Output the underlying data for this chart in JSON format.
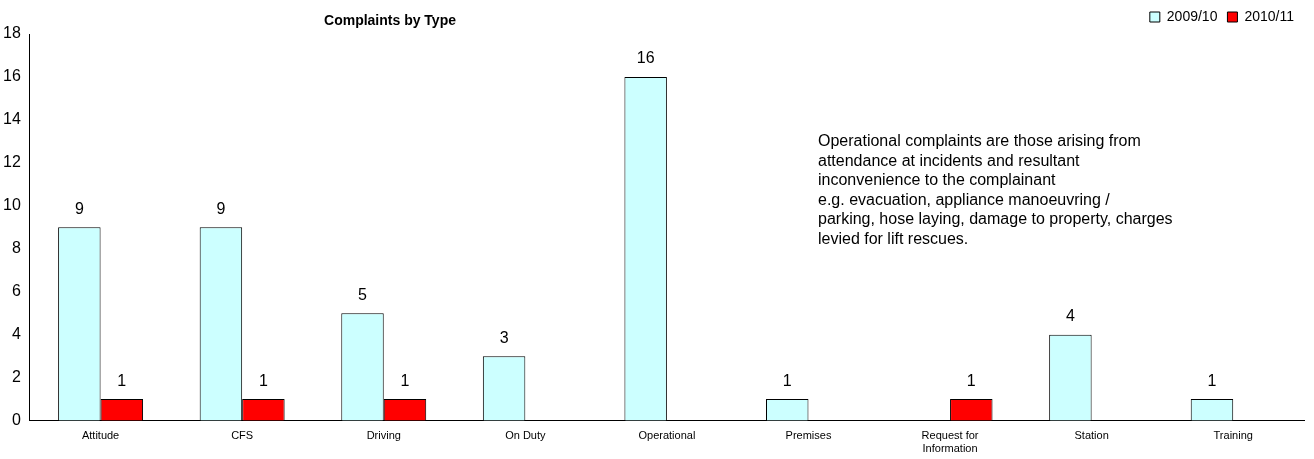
{
  "chart_data": {
    "type": "bar",
    "title": "Complaints by Type",
    "categories": [
      "Attitude",
      "CFS",
      "Driving",
      "On Duty",
      "Operational",
      "Premises",
      "Request for Information",
      "Station",
      "Training"
    ],
    "series": [
      {
        "name": "2009/10",
        "color": "#ccffff",
        "values": [
          9,
          9,
          5,
          3,
          16,
          1,
          null,
          4,
          1
        ]
      },
      {
        "name": "2010/11",
        "color": "#ff0000",
        "values": [
          1,
          1,
          1,
          null,
          null,
          null,
          1,
          null,
          null
        ]
      }
    ],
    "ylim": [
      0,
      18
    ],
    "yticks": [
      0,
      2,
      4,
      6,
      8,
      10,
      12,
      14,
      16,
      18
    ],
    "grid": false,
    "legend": "top right",
    "data_labels": true,
    "annotations": [
      "Operational complaints are those arising from\nattendance at incidents and resultant\ninconvenience to the complainant\ne.g. evacuation, appliance manoeuvring /\nparking, hose laying, damage to property, charges\nlevied for lift rescues."
    ]
  }
}
